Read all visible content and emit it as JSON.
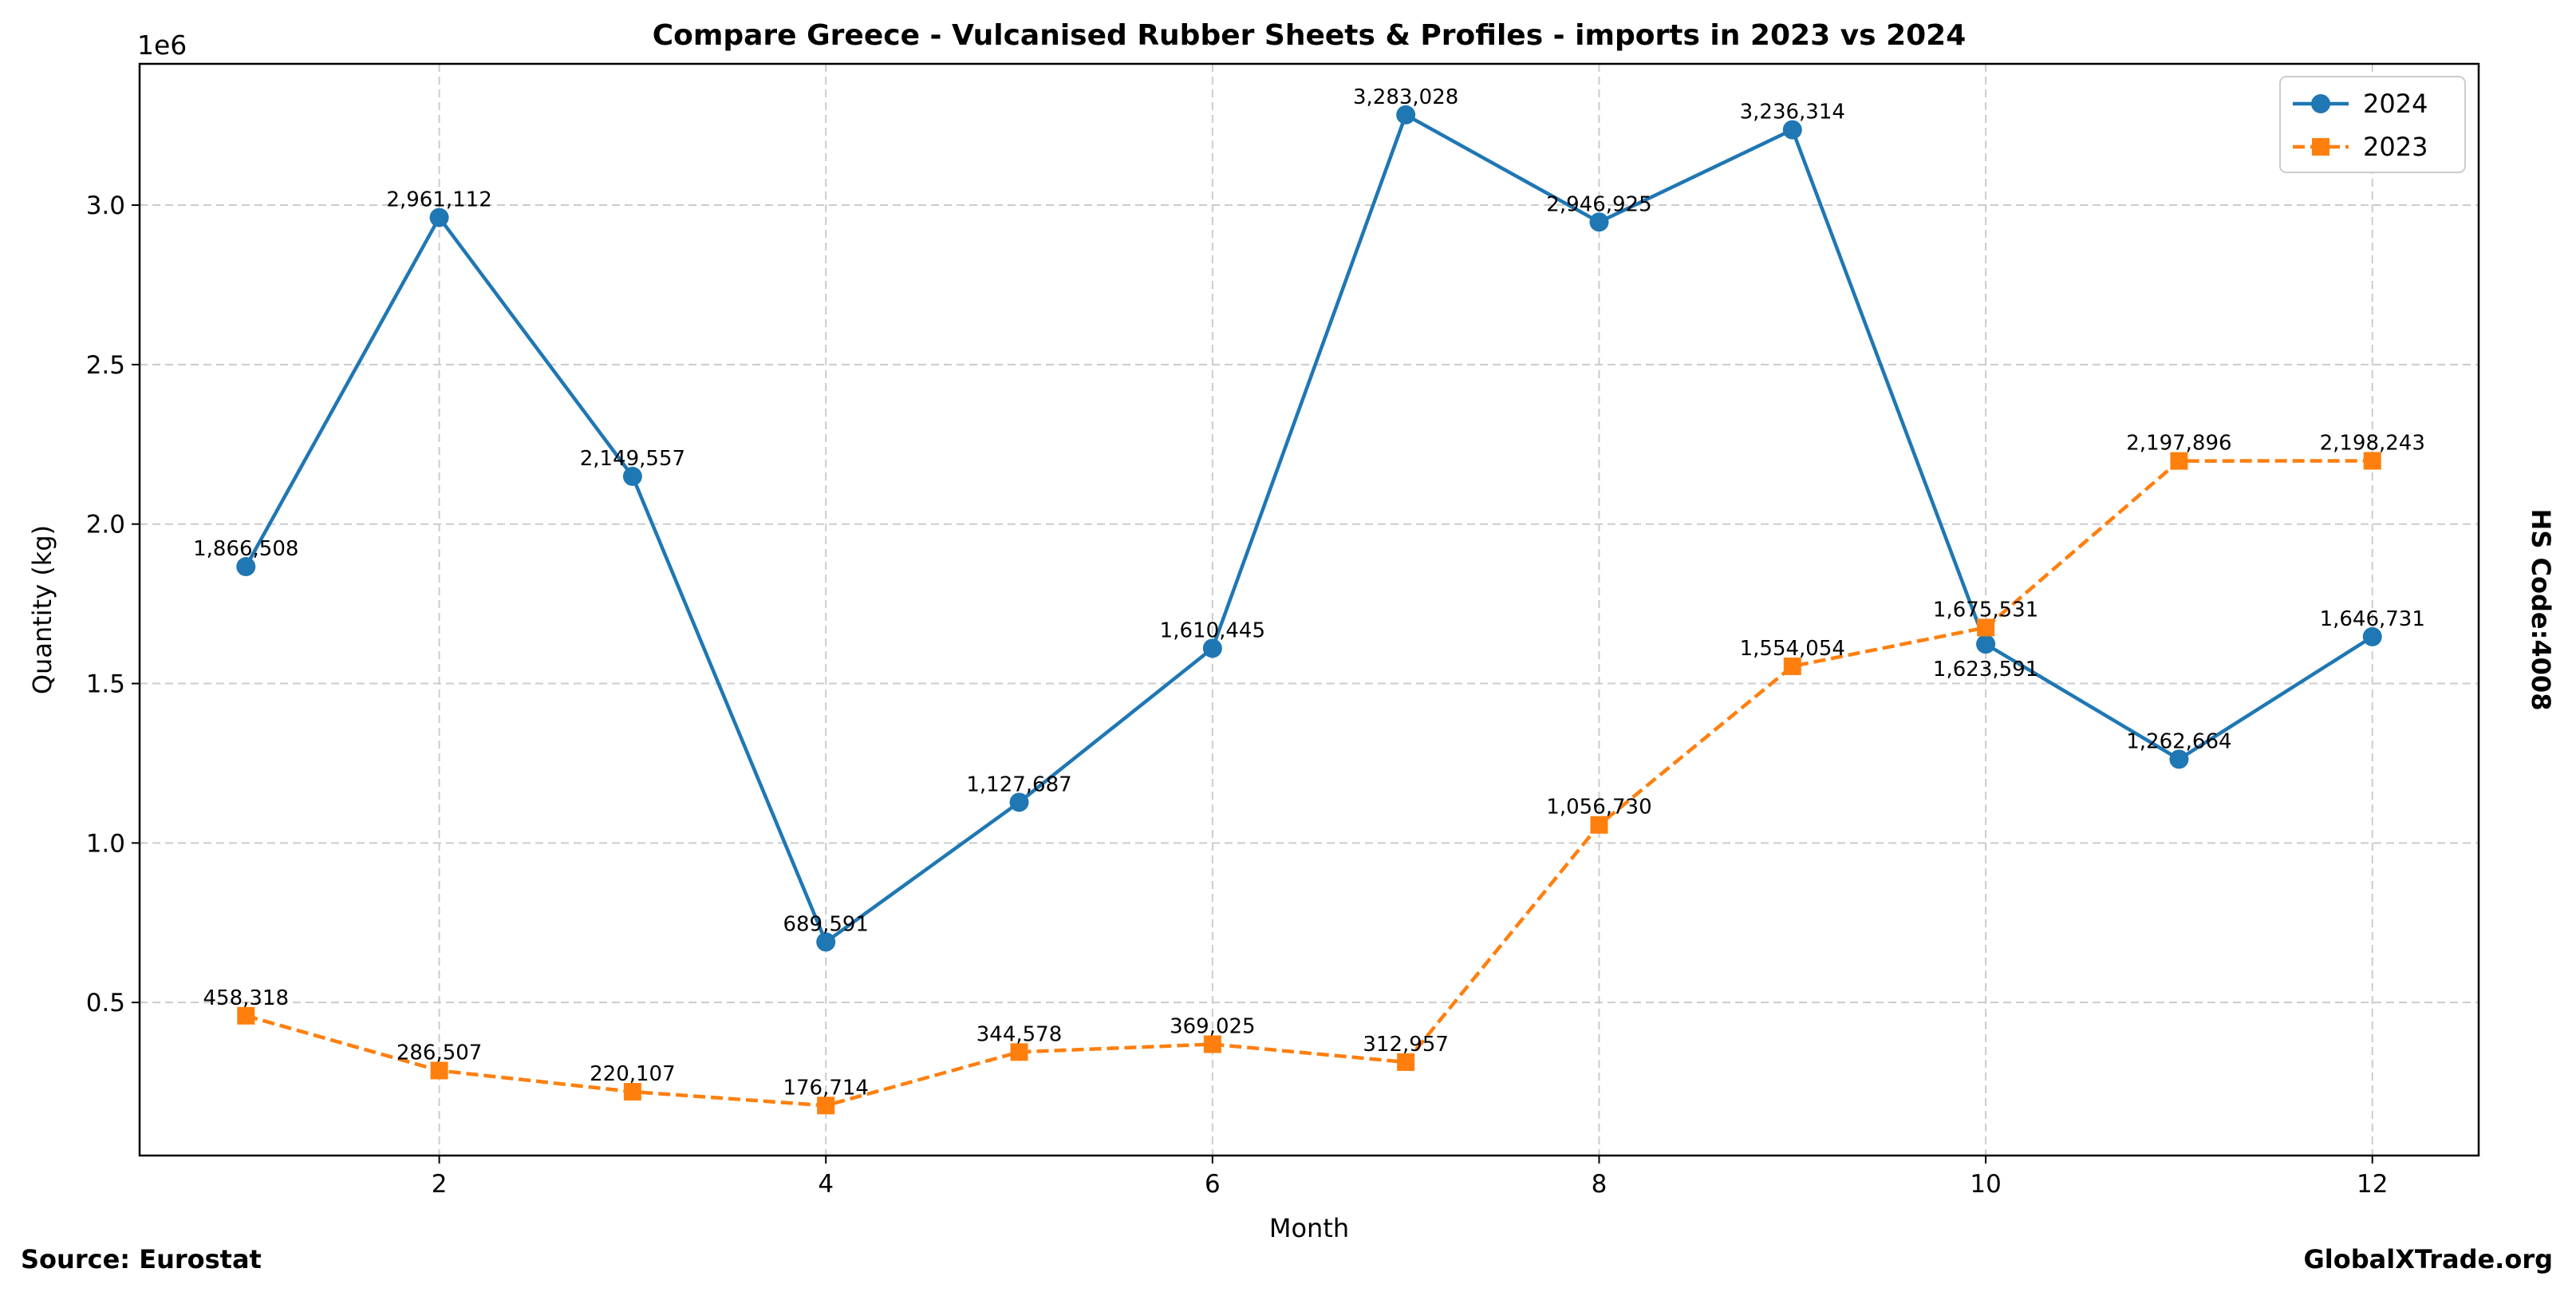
{
  "chart_data": {
    "type": "line",
    "title": "Compare Greece - Vulcanised Rubber Sheets & Profiles - imports in 2023 vs 2024",
    "xlabel": "Month",
    "ylabel": "Quantity (kg)",
    "y_offset_label": "1e6",
    "right_label": "HS Code:4008",
    "source": "Source: Eurostat",
    "watermark": "GlobalXTrade.org",
    "xlim": [
      0.45,
      12.55
    ],
    "ylim": [
      20000,
      3443000
    ],
    "x_ticks": [
      2,
      4,
      6,
      8,
      10,
      12
    ],
    "y_ticks": [
      500000,
      1000000,
      1500000,
      2000000,
      2500000,
      3000000
    ],
    "y_tick_labels": [
      "0.5",
      "1.0",
      "1.5",
      "2.0",
      "2.5",
      "3.0"
    ],
    "grid": true,
    "legend_position": "top-right",
    "x": [
      1,
      2,
      3,
      4,
      5,
      6,
      7,
      8,
      9,
      10,
      11,
      12
    ],
    "series": [
      {
        "name": "2024",
        "color": "#1f77b4",
        "marker": "circle",
        "linestyle": "solid",
        "values": [
          1866508,
          2961112,
          2149557,
          689591,
          1127687,
          1610445,
          3283028,
          2946925,
          3236314,
          1623591,
          1262664,
          1646731
        ]
      },
      {
        "name": "2023",
        "color": "#ff7f0e",
        "marker": "square",
        "linestyle": "dashed",
        "values": [
          458318,
          286507,
          220107,
          176714,
          344578,
          369025,
          312957,
          1056730,
          1554054,
          1675531,
          2197896,
          2198243
        ]
      }
    ]
  }
}
